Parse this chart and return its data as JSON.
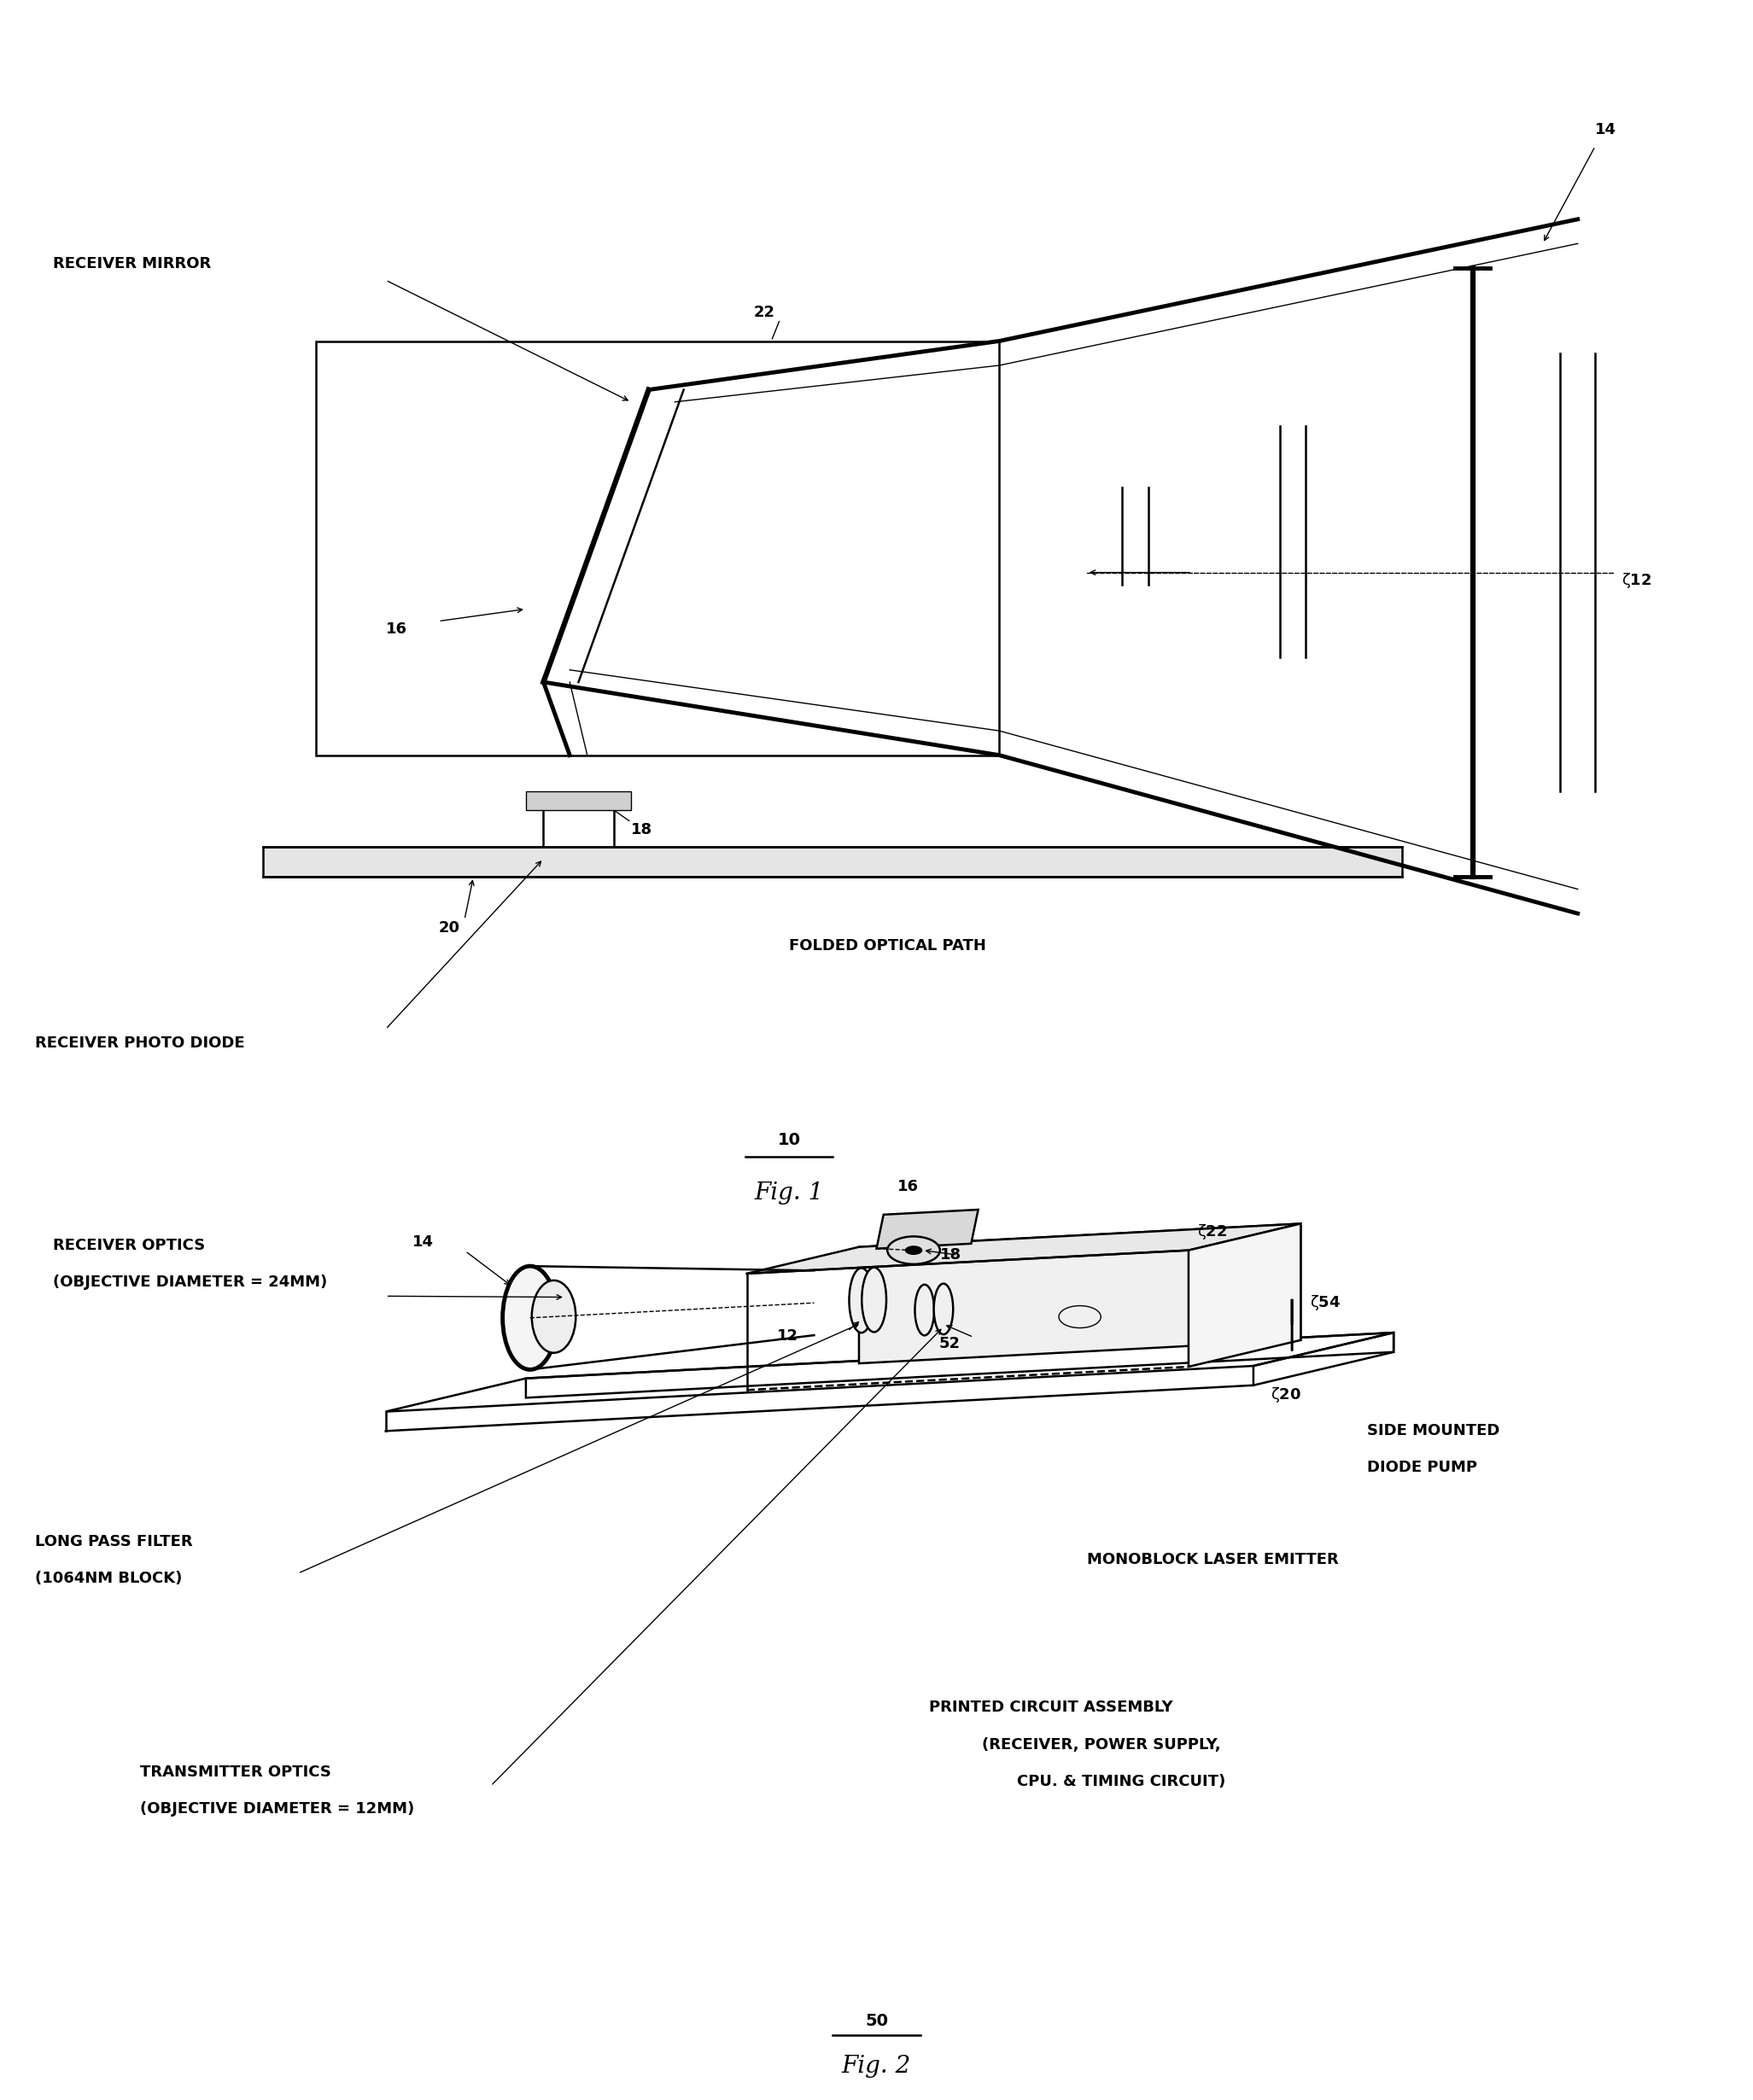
{
  "background_color": "#ffffff",
  "fig_width": 20.53,
  "fig_height": 24.6,
  "fig1_title": "Fig. 1",
  "fig1_label": "10",
  "fig2_title": "Fig. 2",
  "fig2_label": "50",
  "labels": {
    "receiver_mirror": "RECEIVER MIRROR",
    "receiver_photo_diode": "RECEIVER PHOTO DIODE",
    "folded_optical_path": "FOLDED OPTICAL PATH",
    "receiver_optics_line1": "RECEIVER OPTICS",
    "receiver_optics_line2": "(OBJECTIVE DIAMETER = 24MM)",
    "long_pass_filter_line1": "LONG PASS FILTER",
    "long_pass_filter_line2": "(1064NM BLOCK)",
    "transmitter_optics_line1": "TRANSMITTER OPTICS",
    "transmitter_optics_line2": "(OBJECTIVE DIAMETER = 12MM)",
    "side_mounted_line1": "SIDE MOUNTED",
    "side_mounted_line2": "DIODE PUMP",
    "monoblock_laser_emitter": "MONOBLOCK LASER EMITTER",
    "printed_circuit_line1": "PRINTED CIRCUIT ASSEMBLY",
    "printed_circuit_line2": "(RECEIVER, POWER SUPPLY,",
    "printed_circuit_line3": "CPU. & TIMING CIRCUIT)"
  },
  "lc": "#000000",
  "lw_thin": 1.0,
  "lw_med": 1.8,
  "lw_thick": 3.5,
  "fontsize_label": 13,
  "fontsize_ref": 13,
  "fontsize_fignum": 14,
  "fontsize_figtitle": 20
}
